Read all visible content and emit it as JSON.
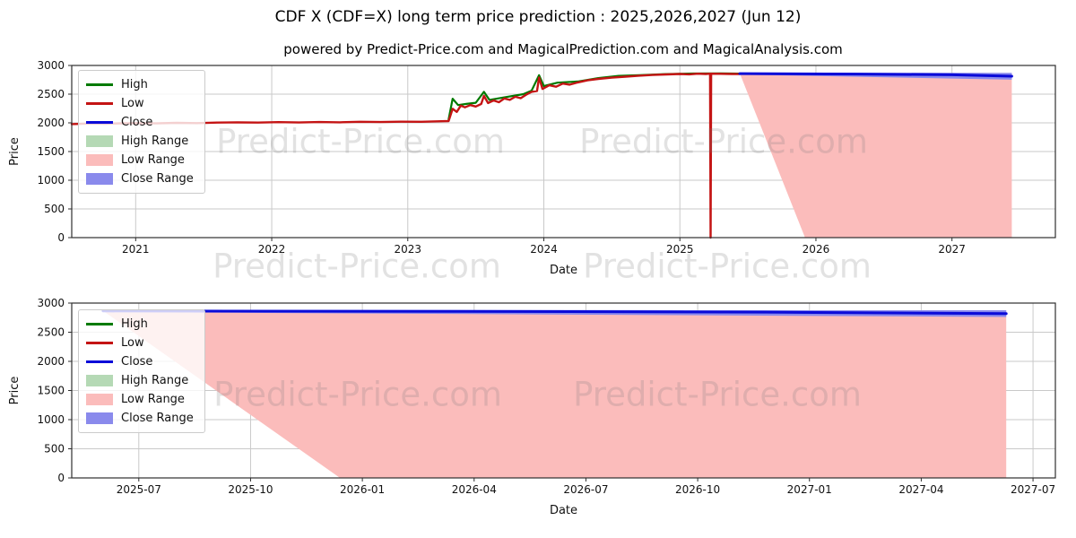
{
  "figure": {
    "title": "CDF X (CDF=X) long term price prediction : 2025,2026,2027 (Jun 12)",
    "subtitle": "powered by Predict-Price.com and MagicalPrediction.com and MagicalAnalysis.com",
    "watermark": "Predict-Price.com",
    "colors": {
      "high": "#007a00",
      "low": "#c41414",
      "close": "#0b0bd8",
      "high_range": "#b5d9b5",
      "low_range": "#fbbcbb",
      "close_range": "#8a8aec",
      "grid": "#c9c9c9",
      "spine": "#2e2e2e",
      "text": "#111111"
    }
  },
  "chart_data": [
    {
      "type": "line",
      "name": "long-term-price-chart",
      "xlabel": "Date",
      "ylabel": "Price",
      "xlim": [
        2020.53,
        2027.76
      ],
      "ylim": [
        0,
        3000
      ],
      "xticks": [
        {
          "v": 2021,
          "label": "2021"
        },
        {
          "v": 2022,
          "label": "2022"
        },
        {
          "v": 2023,
          "label": "2023"
        },
        {
          "v": 2024,
          "label": "2024"
        },
        {
          "v": 2025,
          "label": "2025"
        },
        {
          "v": 2026,
          "label": "2026"
        },
        {
          "v": 2027,
          "label": "2027"
        }
      ],
      "yticks": [
        {
          "v": 0,
          "label": "0"
        },
        {
          "v": 500,
          "label": "500"
        },
        {
          "v": 1000,
          "label": "1000"
        },
        {
          "v": 1500,
          "label": "1500"
        },
        {
          "v": 2000,
          "label": "2000"
        },
        {
          "v": 2500,
          "label": "2500"
        },
        {
          "v": 3000,
          "label": "3000"
        }
      ],
      "legend": [
        {
          "label": "High",
          "swatch": "line",
          "color": "high"
        },
        {
          "label": "Low",
          "swatch": "line",
          "color": "low"
        },
        {
          "label": "Close",
          "swatch": "line",
          "color": "close"
        },
        {
          "label": "High Range",
          "swatch": "patch",
          "color": "high_range"
        },
        {
          "label": "Low Range",
          "swatch": "patch",
          "color": "low_range"
        },
        {
          "label": "Close Range",
          "swatch": "patch",
          "color": "close_range"
        }
      ],
      "areas": [
        {
          "name": "low-range-area",
          "color": "low_range",
          "upper": [
            [
              2025.44,
              2864
            ],
            [
              2027.44,
              2864
            ]
          ],
          "lower": [
            [
              2025.44,
              2864
            ],
            [
              2025.92,
              0
            ],
            [
              2027.44,
              0
            ]
          ]
        },
        {
          "name": "close-range-area",
          "color": "close_range",
          "upper": [
            [
              2025.44,
              2876
            ],
            [
              2027.44,
              2872
            ]
          ],
          "lower": [
            [
              2025.44,
              2840
            ],
            [
              2027.44,
              2752
            ]
          ]
        }
      ],
      "lines": [
        {
          "name": "high-line",
          "color": "high",
          "width": 2.2,
          "points": [
            [
              2023.3,
              2060
            ],
            [
              2023.33,
              2420
            ],
            [
              2023.37,
              2310
            ],
            [
              2023.43,
              2330
            ],
            [
              2023.5,
              2350
            ],
            [
              2023.56,
              2540
            ],
            [
              2023.6,
              2400
            ],
            [
              2023.7,
              2440
            ],
            [
              2023.85,
              2500
            ],
            [
              2023.91,
              2560
            ],
            [
              2023.965,
              2830
            ],
            [
              2024.0,
              2640
            ],
            [
              2024.1,
              2700
            ],
            [
              2024.25,
              2720
            ],
            [
              2024.4,
              2780
            ],
            [
              2024.55,
              2818
            ],
            [
              2024.7,
              2830
            ],
            [
              2024.9,
              2850
            ],
            [
              2025.1,
              2860
            ],
            [
              2025.3,
              2862
            ],
            [
              2025.44,
              2858
            ]
          ]
        },
        {
          "name": "low-line",
          "color": "low",
          "width": 2.4,
          "points": [
            [
              2020.53,
              1978
            ],
            [
              2020.65,
              1988
            ],
            [
              2020.78,
              1984
            ],
            [
              2020.9,
              1992
            ],
            [
              2021.02,
              1996
            ],
            [
              2021.15,
              1990
            ],
            [
              2021.3,
              2000
            ],
            [
              2021.45,
              1996
            ],
            [
              2021.6,
              2004
            ],
            [
              2021.75,
              2008
            ],
            [
              2021.9,
              2004
            ],
            [
              2022.05,
              2012
            ],
            [
              2022.2,
              2006
            ],
            [
              2022.35,
              2014
            ],
            [
              2022.5,
              2010
            ],
            [
              2022.65,
              2018
            ],
            [
              2022.8,
              2014
            ],
            [
              2022.95,
              2020
            ],
            [
              2023.1,
              2018
            ],
            [
              2023.22,
              2026
            ],
            [
              2023.3,
              2032
            ],
            [
              2023.33,
              2245
            ],
            [
              2023.36,
              2190
            ],
            [
              2023.39,
              2300
            ],
            [
              2023.42,
              2270
            ],
            [
              2023.46,
              2310
            ],
            [
              2023.5,
              2285
            ],
            [
              2023.54,
              2330
            ],
            [
              2023.56,
              2470
            ],
            [
              2023.59,
              2345
            ],
            [
              2023.63,
              2390
            ],
            [
              2023.67,
              2360
            ],
            [
              2023.71,
              2425
            ],
            [
              2023.75,
              2400
            ],
            [
              2023.79,
              2455
            ],
            [
              2023.83,
              2430
            ],
            [
              2023.87,
              2490
            ],
            [
              2023.91,
              2540
            ],
            [
              2023.95,
              2555
            ],
            [
              2023.965,
              2790
            ],
            [
              2023.99,
              2590
            ],
            [
              2024.04,
              2655
            ],
            [
              2024.09,
              2630
            ],
            [
              2024.14,
              2685
            ],
            [
              2024.19,
              2665
            ],
            [
              2024.25,
              2705
            ],
            [
              2024.32,
              2740
            ],
            [
              2024.4,
              2765
            ],
            [
              2024.5,
              2788
            ],
            [
              2024.6,
              2805
            ],
            [
              2024.7,
              2822
            ],
            [
              2024.8,
              2835
            ],
            [
              2024.9,
              2844
            ],
            [
              2025.0,
              2852
            ],
            [
              2025.07,
              2846
            ],
            [
              2025.13,
              2856
            ],
            [
              2025.19,
              2852
            ],
            [
              2025.222,
              2856
            ],
            [
              2025.226,
              0
            ],
            [
              2025.23,
              2856
            ],
            [
              2025.3,
              2854
            ],
            [
              2025.38,
              2852
            ],
            [
              2025.44,
              2850
            ]
          ]
        },
        {
          "name": "close-line",
          "color": "close",
          "width": 3,
          "points": [
            [
              2025.44,
              2858
            ],
            [
              2026.3,
              2850
            ],
            [
              2027.0,
              2838
            ],
            [
              2027.44,
              2812
            ]
          ]
        }
      ]
    },
    {
      "type": "line",
      "name": "prediction-zoom-chart",
      "xlabel": "Date",
      "ylabel": "Price",
      "xlim": [
        2025.35,
        2027.55
      ],
      "ylim": [
        0,
        3000
      ],
      "xticks": [
        {
          "v": 2025.5,
          "label": "2025-07"
        },
        {
          "v": 2025.75,
          "label": "2025-10"
        },
        {
          "v": 2026.0,
          "label": "2026-01"
        },
        {
          "v": 2026.25,
          "label": "2026-04"
        },
        {
          "v": 2026.5,
          "label": "2026-07"
        },
        {
          "v": 2026.75,
          "label": "2026-10"
        },
        {
          "v": 2027.0,
          "label": "2027-01"
        },
        {
          "v": 2027.25,
          "label": "2027-04"
        },
        {
          "v": 2027.5,
          "label": "2027-07"
        }
      ],
      "yticks": [
        {
          "v": 0,
          "label": "0"
        },
        {
          "v": 500,
          "label": "500"
        },
        {
          "v": 1000,
          "label": "1000"
        },
        {
          "v": 1500,
          "label": "1500"
        },
        {
          "v": 2000,
          "label": "2000"
        },
        {
          "v": 2500,
          "label": "2500"
        },
        {
          "v": 3000,
          "label": "3000"
        }
      ],
      "legend": [
        {
          "label": "High",
          "swatch": "line",
          "color": "high"
        },
        {
          "label": "Low",
          "swatch": "line",
          "color": "low"
        },
        {
          "label": "Close",
          "swatch": "line",
          "color": "close"
        },
        {
          "label": "High Range",
          "swatch": "patch",
          "color": "high_range"
        },
        {
          "label": "Low Range",
          "swatch": "patch",
          "color": "low_range"
        },
        {
          "label": "Close Range",
          "swatch": "patch",
          "color": "close_range"
        }
      ],
      "areas": [
        {
          "name": "low-range-area",
          "color": "low_range",
          "upper": [
            [
              2025.42,
              2868
            ],
            [
              2027.44,
              2868
            ]
          ],
          "lower": [
            [
              2025.42,
              2868
            ],
            [
              2025.95,
              0
            ],
            [
              2027.44,
              0
            ]
          ]
        },
        {
          "name": "close-range-area",
          "color": "close_range",
          "upper": [
            [
              2025.42,
              2882
            ],
            [
              2027.44,
              2878
            ]
          ],
          "lower": [
            [
              2025.42,
              2846
            ],
            [
              2027.44,
              2762
            ]
          ]
        }
      ],
      "lines": [
        {
          "name": "close-line",
          "color": "close",
          "width": 3,
          "points": [
            [
              2025.42,
              2864
            ],
            [
              2026.2,
              2858
            ],
            [
              2026.9,
              2845
            ],
            [
              2027.44,
              2818
            ]
          ]
        }
      ]
    }
  ]
}
